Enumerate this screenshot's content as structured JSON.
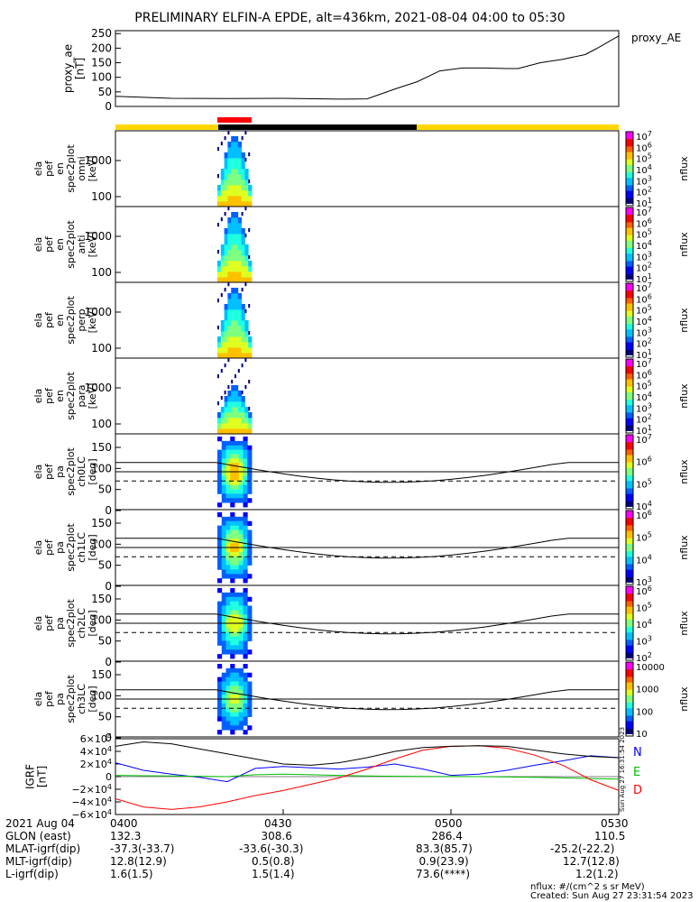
{
  "title": "PRELIMINARY ELFIN-A EPDE, alt=436km, 2021-08-04 04:00 to 05:30",
  "colors": {
    "state_bar_yellow": "#ffd700",
    "state_bar_black": "#000000",
    "state_bar_red": "#ff0000",
    "grf_N": "#0000ff",
    "grf_E": "#00c000",
    "grf_D": "#ff0000"
  },
  "chart_data": [
    {
      "type": "line",
      "title": "",
      "ylabel": "proxy_ae\n[nT]",
      "legend": "proxy_AE",
      "ylim": [
        0,
        260
      ],
      "yticks": [
        "250",
        "200",
        "150",
        "100",
        "50",
        "0"
      ],
      "x_minutes": [
        0,
        10,
        20,
        30,
        40,
        45,
        50,
        54,
        58,
        62,
        66,
        70,
        72,
        76,
        80,
        84,
        86,
        90
      ],
      "values": [
        35,
        28,
        27,
        28,
        25,
        26,
        60,
        85,
        122,
        132,
        132,
        130,
        130,
        150,
        162,
        178,
        198,
        242
      ]
    },
    {
      "type": "heatmap",
      "ylabel": "ela\npef\nen\nspec2plot\nomni\n[keV]",
      "yticks": [
        "1000",
        "100"
      ],
      "colorbar_label": "nflux",
      "colorbar_ticks": [
        "10^7",
        "10^6",
        "10^5",
        "10^4",
        "10^3",
        "10^2",
        "10^1"
      ]
    },
    {
      "type": "heatmap",
      "ylabel": "ela\npef\nen\nspec2plot\nanti\n[keV]",
      "yticks": [
        "1000",
        "100"
      ],
      "colorbar_label": "nflux",
      "colorbar_ticks": [
        "10^7",
        "10^6",
        "10^5",
        "10^4",
        "10^3",
        "10^2",
        "10^1"
      ]
    },
    {
      "type": "heatmap",
      "ylabel": "ela\npef\nen\nspec2plot\nperp\n[keV]",
      "yticks": [
        "1000",
        "100"
      ],
      "colorbar_label": "nflux",
      "colorbar_ticks": [
        "10^7",
        "10^6",
        "10^5",
        "10^4",
        "10^3",
        "10^2",
        "10^1"
      ]
    },
    {
      "type": "heatmap",
      "ylabel": "ela\npef\nen\nspec2plot\npara\n[keV]",
      "yticks": [
        "1000",
        "100"
      ],
      "colorbar_label": "nflux",
      "colorbar_ticks": [
        "10^7",
        "10^6",
        "10^5",
        "10^4",
        "10^3",
        "10^2",
        "10^1"
      ]
    },
    {
      "type": "heatmap",
      "ylabel": "ela\npef\npa\nspec2plot\nch0LC\n[deg]",
      "yticks": [
        "150",
        "100",
        "50",
        "0"
      ],
      "colorbar_label": "nflux",
      "colorbar_ticks": [
        "10^7",
        "10^6",
        "10^5",
        "10^4"
      ]
    },
    {
      "type": "heatmap",
      "ylabel": "ela\npef\npa\nspec2plot\nch1LC\n[deg]",
      "yticks": [
        "150",
        "100",
        "50",
        "0"
      ],
      "colorbar_label": "nflux",
      "colorbar_ticks": [
        "10^6",
        "10^5",
        "10^4",
        "10^3"
      ]
    },
    {
      "type": "heatmap",
      "ylabel": "ela\npef\npa\nspec2plot\nch2LC\n[deg]",
      "yticks": [
        "150",
        "100",
        "50",
        "0"
      ],
      "colorbar_label": "nflux",
      "colorbar_ticks": [
        "10^6",
        "10^5",
        "10^4",
        "10^3",
        "10^2"
      ]
    },
    {
      "type": "heatmap",
      "ylabel": "ela\npef\npa\nspec2plot\nch3LC\n[deg]",
      "yticks": [
        "150",
        "100",
        "50",
        "0"
      ],
      "colorbar_label": "nflux",
      "colorbar_ticks": [
        "10000",
        "1000",
        "100",
        "10"
      ]
    },
    {
      "type": "line",
      "ylabel": "IGRF\n[nT]",
      "ylim": [
        -60000,
        60000
      ],
      "yticks": [
        "6×10^4",
        "4×10^4",
        "2×10^4",
        "0",
        "−2×10^4",
        "−4×10^4",
        "−6×10^4"
      ],
      "x_minutes": [
        0,
        5,
        10,
        15,
        20,
        25,
        30,
        35,
        40,
        45,
        50,
        55,
        60,
        65,
        70,
        75,
        80,
        85,
        90
      ],
      "series": [
        {
          "name": "N",
          "values": [
            22000,
            10000,
            4000,
            -1000,
            -8000,
            13000,
            16000,
            14000,
            12000,
            15000,
            20000,
            12000,
            2000,
            4000,
            10000,
            18000,
            25000,
            33000,
            30000
          ]
        },
        {
          "name": "E",
          "values": [
            2000,
            1500,
            1000,
            500,
            0,
            3000,
            4000,
            3000,
            2000,
            1000,
            500,
            300,
            200,
            0,
            -500,
            -1000,
            -2000,
            -3000,
            -4000
          ]
        },
        {
          "name": "D",
          "values": [
            -35000,
            -48000,
            -52000,
            -48000,
            -40000,
            -30000,
            -22000,
            -12000,
            -2000,
            12000,
            28000,
            42000,
            48000,
            49000,
            45000,
            34000,
            18000,
            -5000,
            -22000
          ]
        },
        {
          "name": "",
          "values": [
            48000,
            55000,
            52000,
            44000,
            36000,
            28000,
            20000,
            18000,
            22000,
            30000,
            40000,
            46000,
            48000,
            49000,
            48000,
            42000,
            36000,
            32000,
            30000
          ]
        }
      ]
    }
  ],
  "side_stamp": "Sun Aug 27 16:31:54 2023",
  "footer": {
    "rows": [
      {
        "label": "2021 Aug 04",
        "values": [
          "0400",
          "0430",
          "0500",
          "0530"
        ]
      },
      {
        "label": "GLON (east)",
        "values": [
          "132.3",
          "308.6",
          "286.4",
          "110.5"
        ]
      },
      {
        "label": "MLAT-igrf(dip)",
        "values": [
          "-37.3(-33.7)",
          "-33.6(-30.3)",
          "83.3(85.7)",
          "-25.2(-22.2)"
        ]
      },
      {
        "label": "MLT-igrf(dip)",
        "values": [
          "12.8(12.9)",
          "0.5(0.8)",
          "0.9(23.9)",
          "12.7(12.8)"
        ]
      },
      {
        "label": "L-igrf(dip)",
        "values": [
          "1.6(1.5)",
          "1.5(1.4)",
          "73.6(****)",
          "1.2(1.2)"
        ]
      }
    ],
    "units_note": "nflux: #/(cm^2 s sr MeV)",
    "created": "Created: Sun Aug 27 23:31:54 2023"
  }
}
